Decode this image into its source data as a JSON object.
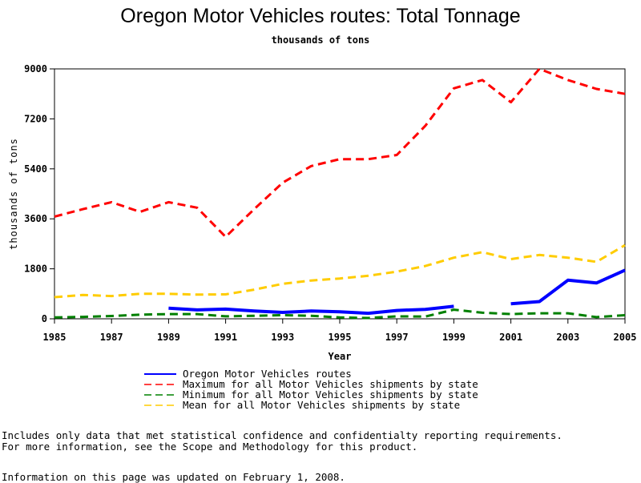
{
  "chart_data": {
    "type": "line",
    "title": "Oregon Motor Vehicles routes: Total Tonnage",
    "subtitle": "thousands of tons",
    "xlabel": "Year",
    "ylabel": "thousands of tons",
    "xlim": [
      1985,
      2005
    ],
    "ylim": [
      0,
      9000
    ],
    "x_ticks": [
      1985,
      1987,
      1989,
      1991,
      1993,
      1995,
      1997,
      1999,
      2001,
      2003,
      2005
    ],
    "y_ticks": [
      0,
      1800,
      3600,
      5400,
      7200,
      9000
    ],
    "grid": false,
    "legend_position": "bottom",
    "series": [
      {
        "name": "Oregon Motor Vehicles routes",
        "color": "#0000ff",
        "style": "solid",
        "points": [
          [
            1989,
            380
          ],
          [
            1990,
            320
          ],
          [
            1991,
            350
          ],
          [
            1992,
            280
          ],
          [
            1993,
            230
          ],
          [
            1994,
            280
          ],
          [
            1995,
            250
          ],
          [
            1996,
            200
          ],
          [
            1997,
            300
          ],
          [
            1998,
            340
          ],
          [
            1999,
            450
          ],
          [
            2001,
            540
          ],
          [
            2002,
            620
          ],
          [
            2003,
            1390
          ],
          [
            2004,
            1290
          ],
          [
            2005,
            1750
          ]
        ]
      },
      {
        "name": "Maximum for all Motor Vehicles shipments by state",
        "color": "#ff0000",
        "style": "dashed",
        "points": [
          [
            1985,
            3680
          ],
          [
            1986,
            3950
          ],
          [
            1987,
            4200
          ],
          [
            1988,
            3850
          ],
          [
            1989,
            4200
          ],
          [
            1990,
            4000
          ],
          [
            1991,
            2950
          ],
          [
            1992,
            3950
          ],
          [
            1993,
            4900
          ],
          [
            1994,
            5500
          ],
          [
            1995,
            5750
          ],
          [
            1996,
            5750
          ],
          [
            1997,
            5900
          ],
          [
            1998,
            6950
          ],
          [
            1999,
            8300
          ],
          [
            2000,
            8600
          ],
          [
            2001,
            7800
          ],
          [
            2002,
            9000
          ],
          [
            2003,
            8600
          ],
          [
            2004,
            8280
          ],
          [
            2005,
            8100
          ]
        ]
      },
      {
        "name": "Minimum for all Motor Vehicles shipments by state",
        "color": "#008000",
        "style": "dashed",
        "points": [
          [
            1985,
            50
          ],
          [
            1986,
            70
          ],
          [
            1987,
            100
          ],
          [
            1988,
            150
          ],
          [
            1989,
            170
          ],
          [
            1990,
            170
          ],
          [
            1991,
            90
          ],
          [
            1992,
            110
          ],
          [
            1993,
            130
          ],
          [
            1994,
            110
          ],
          [
            1995,
            50
          ],
          [
            1996,
            30
          ],
          [
            1997,
            90
          ],
          [
            1998,
            80
          ],
          [
            1999,
            330
          ],
          [
            2000,
            220
          ],
          [
            2001,
            170
          ],
          [
            2002,
            200
          ],
          [
            2003,
            200
          ],
          [
            2004,
            60
          ],
          [
            2005,
            130
          ]
        ]
      },
      {
        "name": "Mean for all Motor Vehicles shipments by state",
        "color": "#ffcc00",
        "style": "dashed",
        "points": [
          [
            1985,
            780
          ],
          [
            1986,
            860
          ],
          [
            1987,
            820
          ],
          [
            1988,
            900
          ],
          [
            1989,
            900
          ],
          [
            1990,
            870
          ],
          [
            1991,
            880
          ],
          [
            1992,
            1050
          ],
          [
            1993,
            1260
          ],
          [
            1994,
            1380
          ],
          [
            1995,
            1450
          ],
          [
            1996,
            1550
          ],
          [
            1997,
            1700
          ],
          [
            1998,
            1900
          ],
          [
            1999,
            2200
          ],
          [
            2000,
            2400
          ],
          [
            2001,
            2150
          ],
          [
            2002,
            2300
          ],
          [
            2003,
            2200
          ],
          [
            2004,
            2050
          ],
          [
            2005,
            2650
          ]
        ]
      }
    ]
  },
  "notes": {
    "line1": "Includes only data that met statistical confidence and confidentialty reporting requirements.",
    "line2": "For more information, see the Scope and Methodology for this product.",
    "updated": "Information on this page was updated on February 1, 2008."
  }
}
